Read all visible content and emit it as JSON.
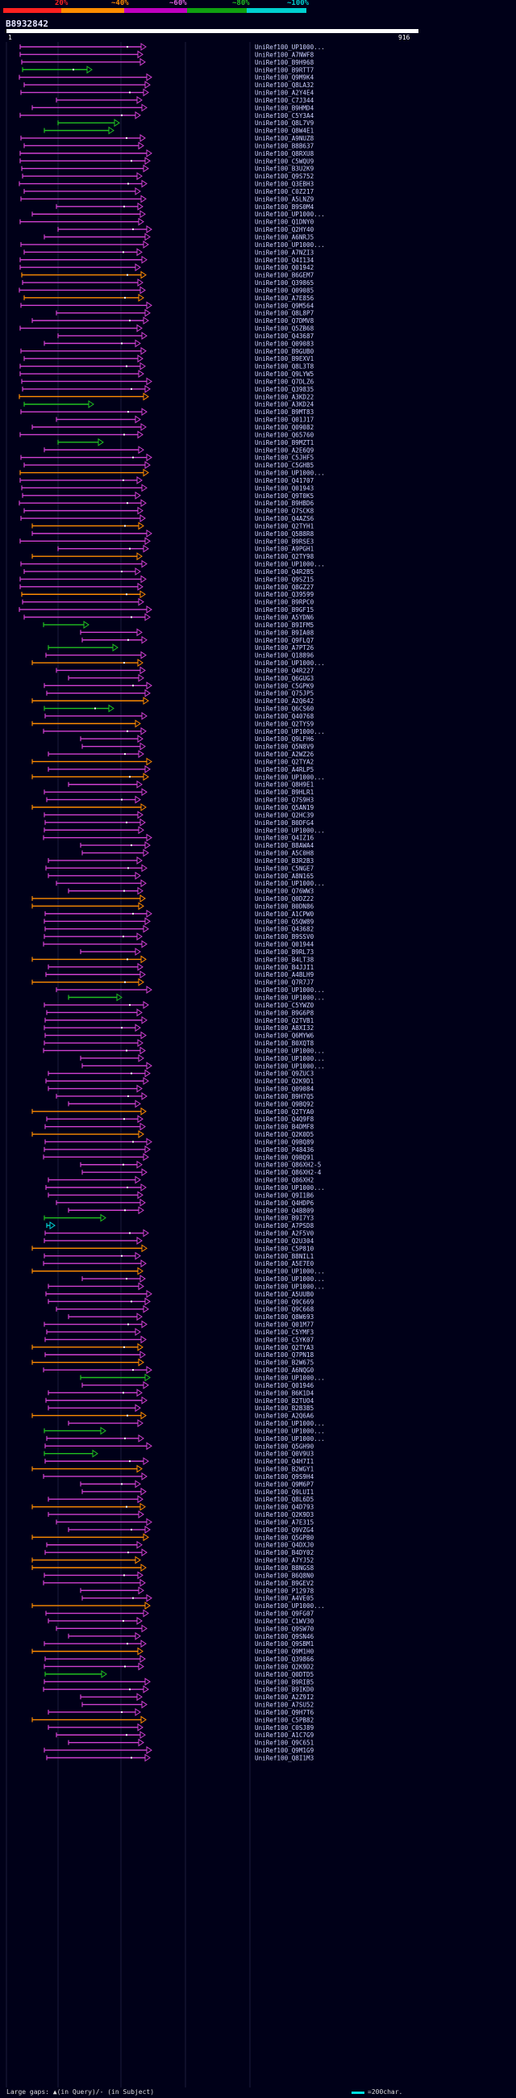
{
  "header": {
    "identity_labels": [
      "20%",
      "~40%",
      "~60%",
      "~80%",
      "~100%"
    ],
    "identity_colors": [
      "#ff2020",
      "#ff8c00",
      "#c000c0",
      "#10a010",
      "#00d0d0"
    ]
  },
  "query": {
    "id": "B8932842",
    "start": "1",
    "end": "916"
  },
  "colors": {
    "pink": "#d040d0",
    "orange": "#ff8c00",
    "green": "#20c020",
    "cyan": "#00d0d0",
    "hit_label": "#cfd4ff"
  },
  "hits": [
    {
      "label": "UniRef100_UP1000...",
      "color": "pink"
    },
    {
      "label": "UniRef100_A7NWF8",
      "color": "pink"
    },
    {
      "label": "UniRef100_B9H968",
      "color": "pink"
    },
    {
      "label": "UniRef100_B9RTT7",
      "color": "green"
    },
    {
      "label": "UniRef100_Q9M9K4",
      "color": "pink"
    },
    {
      "label": "UniRef100_Q8LA32",
      "color": "pink"
    },
    {
      "label": "UniRef100_A2Y4E4",
      "color": "pink"
    },
    {
      "label": "UniRef100_C7J344",
      "color": "pink"
    },
    {
      "label": "UniRef100_B9HMD4",
      "color": "pink"
    },
    {
      "label": "UniRef100_C5Y3A4",
      "color": "pink"
    },
    {
      "label": "UniRef100_Q8L7V9",
      "color": "green"
    },
    {
      "label": "UniRef100_Q8W4E1",
      "color": "green"
    },
    {
      "label": "UniRef100_A9NUZ8",
      "color": "pink"
    },
    {
      "label": "UniRef100_B8B637",
      "color": "pink"
    },
    {
      "label": "UniRef100_Q8RXU8",
      "color": "pink"
    },
    {
      "label": "UniRef100_C5WQU9",
      "color": "pink"
    },
    {
      "label": "UniRef100_B3U2K9",
      "color": "pink"
    },
    {
      "label": "UniRef100_Q9S752",
      "color": "pink"
    },
    {
      "label": "UniRef100_Q3EBH3",
      "color": "pink"
    },
    {
      "label": "UniRef100_C0Z217",
      "color": "pink"
    },
    {
      "label": "UniRef100_A5LNZ9",
      "color": "pink"
    },
    {
      "label": "UniRef100_B9S0M4",
      "color": "pink"
    },
    {
      "label": "UniRef100_UP1000...",
      "color": "pink"
    },
    {
      "label": "UniRef100_Q1DNY0",
      "color": "pink"
    },
    {
      "label": "UniRef100_Q2HY40",
      "color": "pink"
    },
    {
      "label": "UniRef100_A6NRJ5",
      "color": "pink"
    },
    {
      "label": "UniRef100_UP1000...",
      "color": "pink"
    },
    {
      "label": "UniRef100_A7NZI3",
      "color": "pink"
    },
    {
      "label": "UniRef100_Q4I134",
      "color": "pink"
    },
    {
      "label": "UniRef100_Q01942",
      "color": "pink"
    },
    {
      "label": "UniRef100_B6GEM7",
      "color": "orange"
    },
    {
      "label": "UniRef100_Q39865",
      "color": "pink"
    },
    {
      "label": "UniRef100_Q09085",
      "color": "pink"
    },
    {
      "label": "UniRef100_A7E856",
      "color": "orange"
    },
    {
      "label": "UniRef100_Q9M564",
      "color": "pink"
    },
    {
      "label": "UniRef100_Q8L8P7",
      "color": "pink"
    },
    {
      "label": "UniRef100_Q7DMV8",
      "color": "pink"
    },
    {
      "label": "UniRef100_Q5ZB68",
      "color": "pink"
    },
    {
      "label": "UniRef100_Q43687",
      "color": "pink"
    },
    {
      "label": "UniRef100_Q09083",
      "color": "pink"
    },
    {
      "label": "UniRef100_B9GUB0",
      "color": "pink"
    },
    {
      "label": "UniRef100_B9EXV1",
      "color": "pink"
    },
    {
      "label": "UniRef100_Q8L3T8",
      "color": "pink"
    },
    {
      "label": "UniRef100_Q9LYW5",
      "color": "pink"
    },
    {
      "label": "UniRef100_Q7DLZ6",
      "color": "pink"
    },
    {
      "label": "UniRef100_Q39835",
      "color": "pink"
    },
    {
      "label": "UniRef100_A3KD22",
      "color": "orange"
    },
    {
      "label": "UniRef100_A3KD24",
      "color": "green"
    },
    {
      "label": "UniRef100_B9MT83",
      "color": "pink"
    },
    {
      "label": "UniRef100_Q01J17",
      "color": "pink"
    },
    {
      "label": "UniRef100_Q09082",
      "color": "pink"
    },
    {
      "label": "UniRef100_Q65760",
      "color": "pink"
    },
    {
      "label": "UniRef100_B9MZT1",
      "color": "green"
    },
    {
      "label": "UniRef100_A2E6Q9",
      "color": "pink"
    },
    {
      "label": "UniRef100_C5JHF5",
      "color": "pink"
    },
    {
      "label": "UniRef100_C5GHB5",
      "color": "pink"
    },
    {
      "label": "UniRef100_UP1000...",
      "color": "orange"
    },
    {
      "label": "UniRef100_Q41707",
      "color": "pink"
    },
    {
      "label": "UniRef100_Q01943",
      "color": "pink"
    },
    {
      "label": "UniRef100_Q9T0K5",
      "color": "pink"
    },
    {
      "label": "UniRef100_B9HBD6",
      "color": "pink"
    },
    {
      "label": "UniRef100_Q7SCK8",
      "color": "pink"
    },
    {
      "label": "UniRef100_Q4AZS6",
      "color": "pink"
    },
    {
      "label": "UniRef100_Q2TYH1",
      "color": "orange"
    },
    {
      "label": "UniRef100_Q5B8R8",
      "color": "pink"
    },
    {
      "label": "UniRef100_B9RSE3",
      "color": "pink"
    },
    {
      "label": "UniRef100_A9PGH1",
      "color": "pink"
    },
    {
      "label": "UniRef100_Q2TY98",
      "color": "orange"
    },
    {
      "label": "UniRef100_UP1000...",
      "color": "pink"
    },
    {
      "label": "UniRef100_Q4R2B5",
      "color": "pink"
    },
    {
      "label": "UniRef100_Q9SZ15",
      "color": "pink"
    },
    {
      "label": "UniRef100_Q8GZ27",
      "color": "pink"
    },
    {
      "label": "UniRef100_Q39599",
      "color": "orange"
    },
    {
      "label": "UniRef100_B9RPC0",
      "color": "pink"
    },
    {
      "label": "UniRef100_B9GF15",
      "color": "pink"
    },
    {
      "label": "UniRef100_A5YDN6",
      "color": "pink"
    },
    {
      "label": "UniRef100_B9IFM5",
      "color": "green"
    },
    {
      "label": "UniRef100_B9IA08",
      "color": "pink"
    },
    {
      "label": "UniRef100_Q9FLQ7",
      "color": "pink"
    },
    {
      "label": "UniRef100_A7PT26",
      "color": "green"
    },
    {
      "label": "UniRef100_Q18896",
      "color": "pink"
    },
    {
      "label": "UniRef100_UP1000...",
      "color": "orange"
    },
    {
      "label": "UniRef100_Q4R227",
      "color": "pink"
    },
    {
      "label": "UniRef100_Q6GUG3",
      "color": "pink"
    },
    {
      "label": "UniRef100_C5GPK9",
      "color": "pink"
    },
    {
      "label": "UniRef100_Q75JP5",
      "color": "pink"
    },
    {
      "label": "UniRef100_A2Q642",
      "color": "orange"
    },
    {
      "label": "UniRef100_Q6CS60",
      "color": "green"
    },
    {
      "label": "UniRef100_Q40768",
      "color": "pink"
    },
    {
      "label": "UniRef100_Q2TYS9",
      "color": "orange"
    },
    {
      "label": "UniRef100_UP1000...",
      "color": "pink"
    },
    {
      "label": "UniRef100_Q9LFH6",
      "color": "pink"
    },
    {
      "label": "UniRef100_Q5N8V9",
      "color": "pink"
    },
    {
      "label": "UniRef100_A2WZ26",
      "color": "pink"
    },
    {
      "label": "UniRef100_Q2TYA2",
      "color": "orange"
    },
    {
      "label": "UniRef100_A4RLP5",
      "color": "pink"
    },
    {
      "label": "UniRef100_UP1000...",
      "color": "orange"
    },
    {
      "label": "UniRef100_Q8H9E1",
      "color": "pink"
    },
    {
      "label": "UniRef100_B9HLR1",
      "color": "pink"
    },
    {
      "label": "UniRef100_Q7S9H3",
      "color": "pink"
    },
    {
      "label": "UniRef100_Q5AN19",
      "color": "orange"
    },
    {
      "label": "UniRef100_Q2HC39",
      "color": "pink"
    },
    {
      "label": "UniRef100_B0DFG4",
      "color": "pink"
    },
    {
      "label": "UniRef100_UP1000...",
      "color": "pink"
    },
    {
      "label": "UniRef100_Q4IZ16",
      "color": "pink"
    },
    {
      "label": "UniRef100_B8AWA4",
      "color": "pink"
    },
    {
      "label": "UniRef100_A5C0H8",
      "color": "pink"
    },
    {
      "label": "UniRef100_B3R2B3",
      "color": "pink"
    },
    {
      "label": "UniRef100_C5NGE7",
      "color": "pink"
    },
    {
      "label": "UniRef100_A8N165",
      "color": "pink"
    },
    {
      "label": "UniRef100_UP1000...",
      "color": "pink"
    },
    {
      "label": "UniRef100_Q76WW3",
      "color": "pink"
    },
    {
      "label": "UniRef100_Q0DZ22",
      "color": "orange"
    },
    {
      "label": "UniRef100_B0DN86",
      "color": "orange"
    },
    {
      "label": "UniRef100_A1CPW0",
      "color": "pink"
    },
    {
      "label": "UniRef100_Q5QW89",
      "color": "pink"
    },
    {
      "label": "UniRef100_Q43682",
      "color": "pink"
    },
    {
      "label": "UniRef100_B9SSV0",
      "color": "pink"
    },
    {
      "label": "UniRef100_Q01944",
      "color": "pink"
    },
    {
      "label": "UniRef100_B9RL73",
      "color": "pink"
    },
    {
      "label": "UniRef100_B4LT38",
      "color": "orange"
    },
    {
      "label": "UniRef100_B4JJI1",
      "color": "pink"
    },
    {
      "label": "UniRef100_A4BLH9",
      "color": "pink"
    },
    {
      "label": "UniRef100_Q7R7J7",
      "color": "orange"
    },
    {
      "label": "UniRef100_UP1000...",
      "color": "pink"
    },
    {
      "label": "UniRef100_UP1000...",
      "color": "green"
    },
    {
      "label": "UniRef100_C5YWZ0",
      "color": "pink"
    },
    {
      "label": "UniRef100_B9G6P8",
      "color": "pink"
    },
    {
      "label": "UniRef100_Q2TVB1",
      "color": "pink"
    },
    {
      "label": "UniRef100_A8XI32",
      "color": "pink"
    },
    {
      "label": "UniRef100_Q6MYW6",
      "color": "pink"
    },
    {
      "label": "UniRef100_B0XQT8",
      "color": "pink"
    },
    {
      "label": "UniRef100_UP1000...",
      "color": "pink"
    },
    {
      "label": "UniRef100_UP1000...",
      "color": "pink"
    },
    {
      "label": "UniRef100_UP1000...",
      "color": "pink"
    },
    {
      "label": "UniRef100_Q9ZUC3",
      "color": "pink"
    },
    {
      "label": "UniRef100_Q2K9D1",
      "color": "pink"
    },
    {
      "label": "UniRef100_Q09084",
      "color": "pink"
    },
    {
      "label": "UniRef100_B9H7Q5",
      "color": "pink"
    },
    {
      "label": "UniRef100_Q9BQ92",
      "color": "pink"
    },
    {
      "label": "UniRef100_Q2TYA0",
      "color": "orange"
    },
    {
      "label": "UniRef100_Q4Q9F8",
      "color": "pink"
    },
    {
      "label": "UniRef100_B4DMF8",
      "color": "pink"
    },
    {
      "label": "UniRef100_Q2K0D5",
      "color": "orange"
    },
    {
      "label": "UniRef100_Q9BQ89",
      "color": "pink"
    },
    {
      "label": "UniRef100_P48436",
      "color": "pink"
    },
    {
      "label": "UniRef100_Q9BQ91",
      "color": "pink"
    },
    {
      "label": "UniRef100_Q86XH2-5",
      "color": "pink"
    },
    {
      "label": "UniRef100_Q86XH2-4",
      "color": "pink"
    },
    {
      "label": "UniRef100_Q86XH2",
      "color": "pink"
    },
    {
      "label": "UniRef100_UP1000...",
      "color": "pink"
    },
    {
      "label": "UniRef100_Q9I1B6",
      "color": "pink"
    },
    {
      "label": "UniRef100_Q4HDP6",
      "color": "pink"
    },
    {
      "label": "UniRef100_Q4B809",
      "color": "pink"
    },
    {
      "label": "UniRef100_B9I7Y3",
      "color": "green"
    },
    {
      "label": "UniRef100_A7PSD8",
      "color": "cyan"
    },
    {
      "label": "UniRef100_A2F5V0",
      "color": "pink"
    },
    {
      "label": "UniRef100_Q2U304",
      "color": "pink"
    },
    {
      "label": "UniRef100_C5P810",
      "color": "orange"
    },
    {
      "label": "UniRef100_B8NIL1",
      "color": "pink"
    },
    {
      "label": "UniRef100_A5E7E0",
      "color": "pink"
    },
    {
      "label": "UniRef100_UP1000...",
      "color": "orange"
    },
    {
      "label": "UniRef100_UP1000...",
      "color": "pink"
    },
    {
      "label": "UniRef100_UP1000...",
      "color": "pink"
    },
    {
      "label": "UniRef100_A5UUB0",
      "color": "pink"
    },
    {
      "label": "UniRef100_Q9C669",
      "color": "pink"
    },
    {
      "label": "UniRef100_Q9C668",
      "color": "pink"
    },
    {
      "label": "UniRef100_Q8W693",
      "color": "pink"
    },
    {
      "label": "UniRef100_Q01M77",
      "color": "pink"
    },
    {
      "label": "UniRef100_C5YMF3",
      "color": "pink"
    },
    {
      "label": "UniRef100_C5YK07",
      "color": "pink"
    },
    {
      "label": "UniRef100_Q2TYA3",
      "color": "orange"
    },
    {
      "label": "UniRef100_Q7PN18",
      "color": "pink"
    },
    {
      "label": "UniRef100_B2W675",
      "color": "orange"
    },
    {
      "label": "UniRef100_A6NQG0",
      "color": "pink"
    },
    {
      "label": "UniRef100_UP1000...",
      "color": "green"
    },
    {
      "label": "UniRef100_Q01946",
      "color": "pink"
    },
    {
      "label": "UniRef100_B6K1D4",
      "color": "pink"
    },
    {
      "label": "UniRef100_B2TUO4",
      "color": "pink"
    },
    {
      "label": "UniRef100_B2B3B5",
      "color": "pink"
    },
    {
      "label": "UniRef100_A2Q6A6",
      "color": "orange"
    },
    {
      "label": "UniRef100_UP1000...",
      "color": "pink"
    },
    {
      "label": "UniRef100_UP1000...",
      "color": "green"
    },
    {
      "label": "UniRef100_UP1000...",
      "color": "pink"
    },
    {
      "label": "UniRef100_Q5GH90",
      "color": "pink"
    },
    {
      "label": "UniRef100_Q0V9U3",
      "color": "green"
    },
    {
      "label": "UniRef100_Q4H7I1",
      "color": "pink"
    },
    {
      "label": "UniRef100_B2WGY1",
      "color": "orange"
    },
    {
      "label": "UniRef100_Q9S9H4",
      "color": "pink"
    },
    {
      "label": "UniRef100_Q9M6P7",
      "color": "pink"
    },
    {
      "label": "UniRef100_Q9LUI1",
      "color": "pink"
    },
    {
      "label": "UniRef100_Q8L6D5",
      "color": "pink"
    },
    {
      "label": "UniRef100_Q4D793",
      "color": "orange"
    },
    {
      "label": "UniRef100_Q2K9D3",
      "color": "pink"
    },
    {
      "label": "UniRef100_A7E315",
      "color": "pink"
    },
    {
      "label": "UniRef100_Q9VZG4",
      "color": "pink"
    },
    {
      "label": "UniRef100_Q5GPB0",
      "color": "orange"
    },
    {
      "label": "UniRef100_Q4DXJ0",
      "color": "pink"
    },
    {
      "label": "UniRef100_B4DY02",
      "color": "pink"
    },
    {
      "label": "UniRef100_A7YJ52",
      "color": "orange"
    },
    {
      "label": "UniRef100_B8NGS8",
      "color": "orange"
    },
    {
      "label": "UniRef100_B6Q8N0",
      "color": "pink"
    },
    {
      "label": "UniRef100_B9GEV2",
      "color": "pink"
    },
    {
      "label": "UniRef100_P12978",
      "color": "pink"
    },
    {
      "label": "UniRef100_A4VE05",
      "color": "pink"
    },
    {
      "label": "UniRef100_UP1000...",
      "color": "orange"
    },
    {
      "label": "UniRef100_Q9FG07",
      "color": "pink"
    },
    {
      "label": "UniRef100_C1WV30",
      "color": "pink"
    },
    {
      "label": "UniRef100_Q9SW70",
      "color": "pink"
    },
    {
      "label": "UniRef100_Q9SN46",
      "color": "pink"
    },
    {
      "label": "UniRef100_Q9SBM1",
      "color": "pink"
    },
    {
      "label": "UniRef100_Q9M1H0",
      "color": "orange"
    },
    {
      "label": "UniRef100_Q39866",
      "color": "pink"
    },
    {
      "label": "UniRef100_Q2K9D2",
      "color": "pink"
    },
    {
      "label": "UniRef100_Q0DTD5",
      "color": "green"
    },
    {
      "label": "UniRef100_B9RIB5",
      "color": "pink"
    },
    {
      "label": "UniRef100_B9IKD0",
      "color": "pink"
    },
    {
      "label": "UniRef100_A2Z9I2",
      "color": "pink"
    },
    {
      "label": "UniRef100_A7SU52",
      "color": "pink"
    },
    {
      "label": "UniRef100_Q9H7T6",
      "color": "pink"
    },
    {
      "label": "UniRef100_C5PB82",
      "color": "orange"
    },
    {
      "label": "UniRef100_C0SJ89",
      "color": "pink"
    },
    {
      "label": "UniRef100_A1C7G9",
      "color": "pink"
    },
    {
      "label": "UniRef100_Q9C651",
      "color": "pink"
    },
    {
      "label": "UniRef100_Q9M1G9",
      "color": "pink"
    },
    {
      "label": "UniRef100_Q8I1M3",
      "color": "pink"
    }
  ],
  "footer": {
    "left": "Large gaps: ▲(in Query)/- (in Subject)",
    "right": "=200char."
  }
}
